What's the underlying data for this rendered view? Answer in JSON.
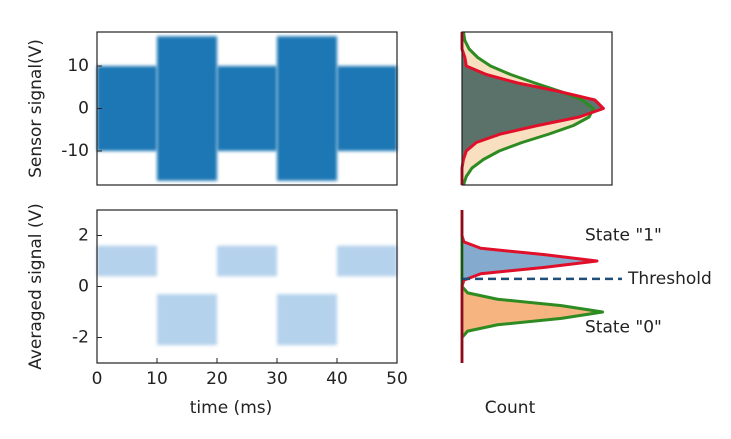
{
  "chart_data": [
    {
      "type": "band",
      "y_label": "Sensor signal(V)",
      "color": "#1f77b4",
      "opacity": 1,
      "bins": [
        0,
        10,
        20,
        30,
        40,
        50
      ],
      "high": [
        10,
        17,
        10,
        17,
        10
      ],
      "low": [
        -10,
        -17,
        -10,
        -17,
        -10
      ],
      "xlim": [
        0,
        50
      ],
      "ylim": [
        -18,
        18
      ],
      "yticks": [
        -10,
        0,
        10
      ],
      "frame": true
    },
    {
      "type": "band",
      "y_label": "Averaged signal (V)",
      "x_label": "time (ms)",
      "color": "#5b9bd5",
      "opacity": 0.45,
      "bins": [
        0,
        10,
        20,
        30,
        40,
        50
      ],
      "high": [
        1.6,
        -0.3,
        1.6,
        -0.3,
        1.6
      ],
      "low": [
        0.4,
        -2.3,
        0.4,
        -2.3,
        0.4
      ],
      "xlim": [
        0,
        50
      ],
      "ylim": [
        -3,
        3
      ],
      "yticks": [
        -2,
        0,
        2
      ],
      "xticks": [
        0,
        10,
        20,
        30,
        40,
        50
      ],
      "frame": true
    },
    {
      "type": "density",
      "xlim": [
        0,
        1.05
      ],
      "ylim": [
        -18,
        18
      ],
      "frame": true,
      "y": [
        -18,
        -16,
        -14,
        -12,
        -10,
        -8,
        -6,
        -4,
        -2,
        0,
        2,
        4,
        6,
        8,
        10,
        12,
        14,
        16,
        18
      ],
      "series": [
        {
          "color": "#2e8b22",
          "fill": "#f7d9b5",
          "values": [
            0.01,
            0.03,
            0.07,
            0.15,
            0.26,
            0.42,
            0.61,
            0.78,
            0.89,
            0.92,
            0.84,
            0.69,
            0.51,
            0.34,
            0.2,
            0.11,
            0.05,
            0.02,
            0.01
          ]
        },
        {
          "color": "#e0102a",
          "fill": "#3f5f5c",
          "values": [
            0,
            0,
            0,
            0.01,
            0.03,
            0.1,
            0.27,
            0.53,
            0.82,
            0.99,
            0.93,
            0.68,
            0.39,
            0.17,
            0.03,
            0.02,
            0,
            0,
            0
          ]
        }
      ]
    },
    {
      "type": "density",
      "x_label": "Count",
      "xlim": [
        0,
        0.8
      ],
      "ylim": [
        -3,
        3
      ],
      "frame": false,
      "y": [
        -3,
        -2.75,
        -2.5,
        -2.25,
        -2,
        -1.75,
        -1.5,
        -1.25,
        -1,
        -0.75,
        -0.5,
        -0.25,
        0,
        0.25,
        0.5,
        0.75,
        1,
        1.25,
        1.5,
        1.75,
        2,
        2.25,
        2.5,
        2.75,
        3
      ],
      "series": [
        {
          "color": "#2e8b22",
          "fill": "#f5a86a",
          "values": [
            0,
            0,
            0,
            0,
            0,
            0.03,
            0.19,
            0.53,
            0.75,
            0.53,
            0.19,
            0.03,
            0,
            0,
            0,
            0,
            0,
            0,
            0,
            0,
            0,
            0,
            0,
            0,
            0
          ]
        },
        {
          "color": "#e0102a",
          "fill": "#6f9cc4",
          "values": [
            0,
            0,
            0,
            0,
            0,
            0,
            0,
            0,
            0,
            0,
            0,
            0,
            0,
            0.01,
            0.1,
            0.44,
            0.72,
            0.44,
            0.1,
            0.01,
            0,
            0,
            0,
            0,
            0
          ]
        }
      ],
      "threshold": 0.3,
      "threshold_label": "Threshold",
      "threshold_color": "#1f4e79",
      "annotations": [
        {
          "text": "State \"1\"",
          "y": 2
        },
        {
          "text": "State \"0\"",
          "y": -1.6
        }
      ]
    }
  ]
}
